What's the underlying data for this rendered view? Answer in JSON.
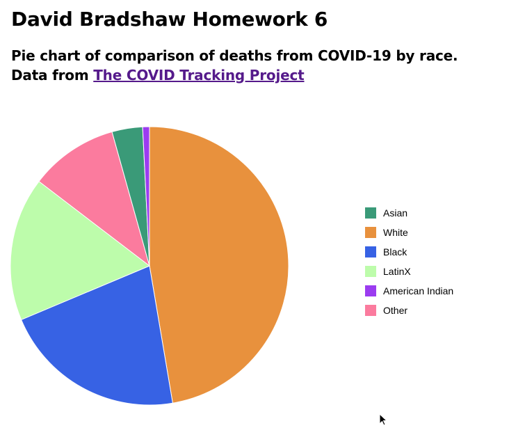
{
  "page": {
    "title": "David Bradshaw Homework 6",
    "subtitle_line1": "Pie chart of comparison of deaths from COVID-19 by race.",
    "subtitle_line2_prefix": "Data from ",
    "subtitle_link_text": "The COVID Tracking Project"
  },
  "chart_data": {
    "type": "pie",
    "title": "",
    "categories": [
      "Asian",
      "White",
      "Black",
      "LatinX",
      "American Indian",
      "Other"
    ],
    "values": [
      3.6,
      47.9,
      21.6,
      16.9,
      0.8,
      10.4
    ],
    "colors": [
      "#3a9a78",
      "#e8913d",
      "#3762e4",
      "#bdfcab",
      "#9b3cf0",
      "#fb7b9e"
    ],
    "legend": "right",
    "slice_order": [
      "White",
      "Black",
      "LatinX",
      "Other",
      "Asian",
      "American Indian"
    ]
  }
}
